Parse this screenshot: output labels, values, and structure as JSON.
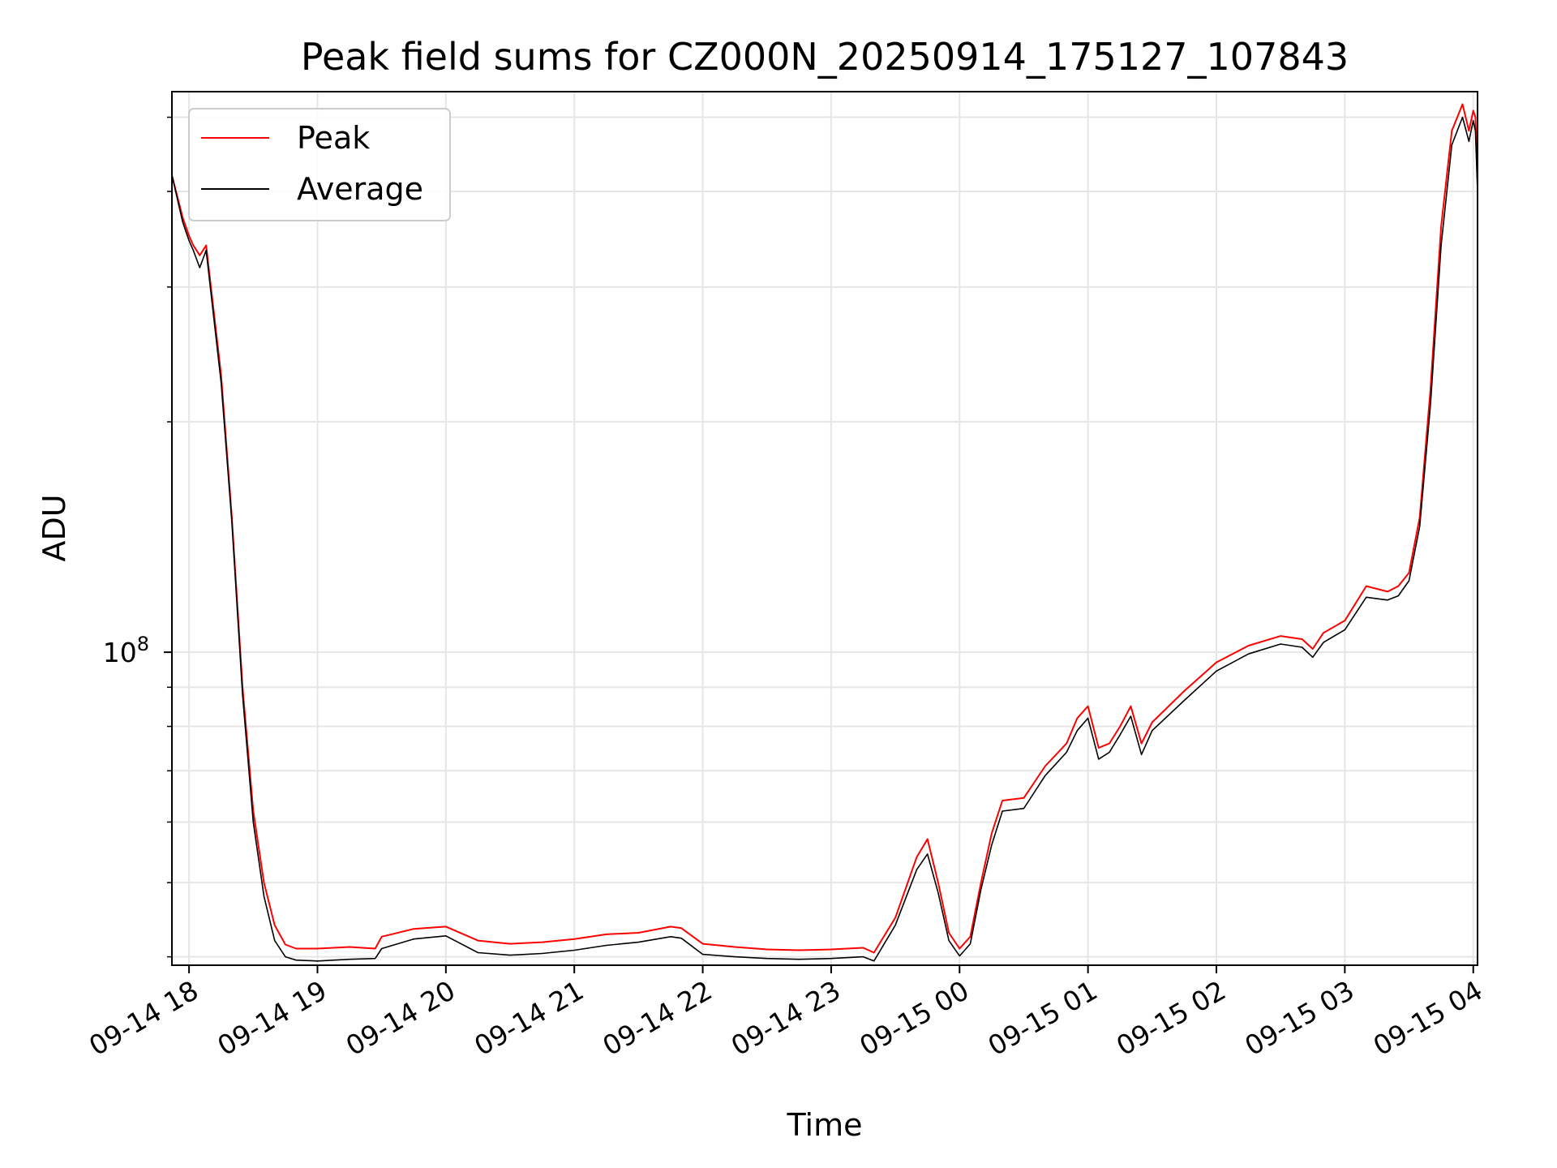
{
  "chart_data": {
    "type": "line",
    "title": "Peak field sums for CZ000N_20250914_175127_107843",
    "xlabel": "Time",
    "ylabel": "ADU",
    "y_scale": "log",
    "ylim": [
      39000000,
      540000000
    ],
    "xlim": [
      "2025-09-14 17:52",
      "2025-09-15 04:02"
    ],
    "x_ticks": [
      "09-14 18",
      "09-14 19",
      "09-14 20",
      "09-14 21",
      "09-14 22",
      "09-14 23",
      "09-15 00",
      "09-15 01",
      "09-15 02",
      "09-15 03",
      "09-15 04"
    ],
    "y_ticks": [
      {
        "value": 100000000,
        "base": "10",
        "exp": "8"
      }
    ],
    "grid": true,
    "legend_position": "top-left",
    "series": [
      {
        "name": "Peak",
        "color": "#ff0000",
        "x": [
          "2025-09-14 17:52",
          "2025-09-14 17:57",
          "2025-09-14 18:00",
          "2025-09-14 18:02",
          "2025-09-14 18:05",
          "2025-09-14 18:08",
          "2025-09-14 18:15",
          "2025-09-14 18:20",
          "2025-09-14 18:25",
          "2025-09-14 18:30",
          "2025-09-14 18:35",
          "2025-09-14 18:40",
          "2025-09-14 18:45",
          "2025-09-14 18:50",
          "2025-09-14 19:00",
          "2025-09-14 19:15",
          "2025-09-14 19:27",
          "2025-09-14 19:30",
          "2025-09-14 19:45",
          "2025-09-14 20:00",
          "2025-09-14 20:15",
          "2025-09-14 20:30",
          "2025-09-14 20:45",
          "2025-09-14 21:00",
          "2025-09-14 21:15",
          "2025-09-14 21:30",
          "2025-09-14 21:45",
          "2025-09-14 21:50",
          "2025-09-14 22:00",
          "2025-09-14 22:15",
          "2025-09-14 22:30",
          "2025-09-14 22:45",
          "2025-09-14 23:00",
          "2025-09-14 23:15",
          "2025-09-14 23:20",
          "2025-09-14 23:30",
          "2025-09-14 23:40",
          "2025-09-14 23:45",
          "2025-09-14 23:50",
          "2025-09-14 23:55",
          "2025-09-15 00:00",
          "2025-09-15 00:05",
          "2025-09-15 00:10",
          "2025-09-15 00:15",
          "2025-09-15 00:20",
          "2025-09-15 00:30",
          "2025-09-15 00:40",
          "2025-09-15 00:50",
          "2025-09-15 00:55",
          "2025-09-15 01:00",
          "2025-09-15 01:05",
          "2025-09-15 01:10",
          "2025-09-15 01:15",
          "2025-09-15 01:20",
          "2025-09-15 01:25",
          "2025-09-15 01:30",
          "2025-09-15 01:45",
          "2025-09-15 02:00",
          "2025-09-15 02:15",
          "2025-09-15 02:30",
          "2025-09-15 02:40",
          "2025-09-15 02:45",
          "2025-09-15 02:50",
          "2025-09-15 03:00",
          "2025-09-15 03:10",
          "2025-09-15 03:20",
          "2025-09-15 03:25",
          "2025-09-15 03:30",
          "2025-09-15 03:35",
          "2025-09-15 03:40",
          "2025-09-15 03:45",
          "2025-09-15 03:50",
          "2025-09-15 03:55",
          "2025-09-15 03:58",
          "2025-09-15 04:00",
          "2025-09-15 04:01",
          "2025-09-15 04:02"
        ],
        "y": [
          420000000,
          370000000,
          350000000,
          340000000,
          330000000,
          340000000,
          230000000,
          150000000,
          90000000,
          62000000,
          50000000,
          44000000,
          41500000,
          41000000,
          41000000,
          41200000,
          41000000,
          42500000,
          43500000,
          43800000,
          42000000,
          41600000,
          41800000,
          42200000,
          42800000,
          43000000,
          43800000,
          43600000,
          41600000,
          41200000,
          40900000,
          40800000,
          40900000,
          41100000,
          40500000,
          45000000,
          54000000,
          57000000,
          50000000,
          43000000,
          41000000,
          42500000,
          50000000,
          58000000,
          64000000,
          64500000,
          71000000,
          76000000,
          82000000,
          85000000,
          75000000,
          76000000,
          80000000,
          85000000,
          76000000,
          81000000,
          89000000,
          97000000,
          102000000,
          105000000,
          104000000,
          101000000,
          106000000,
          110000000,
          122000000,
          120000000,
          122000000,
          127000000,
          150000000,
          220000000,
          360000000,
          480000000,
          520000000,
          480000000,
          510000000,
          500000000,
          420000000
        ]
      },
      {
        "name": "Average",
        "color": "#000000",
        "x": [
          "2025-09-14 17:52",
          "2025-09-14 17:57",
          "2025-09-14 18:00",
          "2025-09-14 18:02",
          "2025-09-14 18:05",
          "2025-09-14 18:08",
          "2025-09-14 18:15",
          "2025-09-14 18:20",
          "2025-09-14 18:25",
          "2025-09-14 18:30",
          "2025-09-14 18:35",
          "2025-09-14 18:40",
          "2025-09-14 18:45",
          "2025-09-14 18:50",
          "2025-09-14 19:00",
          "2025-09-14 19:15",
          "2025-09-14 19:27",
          "2025-09-14 19:30",
          "2025-09-14 19:45",
          "2025-09-14 20:00",
          "2025-09-14 20:15",
          "2025-09-14 20:30",
          "2025-09-14 20:45",
          "2025-09-14 21:00",
          "2025-09-14 21:15",
          "2025-09-14 21:30",
          "2025-09-14 21:45",
          "2025-09-14 21:50",
          "2025-09-14 22:00",
          "2025-09-14 22:15",
          "2025-09-14 22:30",
          "2025-09-14 22:45",
          "2025-09-14 23:00",
          "2025-09-14 23:15",
          "2025-09-14 23:20",
          "2025-09-14 23:30",
          "2025-09-14 23:40",
          "2025-09-14 23:45",
          "2025-09-14 23:50",
          "2025-09-14 23:55",
          "2025-09-15 00:00",
          "2025-09-15 00:05",
          "2025-09-15 00:10",
          "2025-09-15 00:15",
          "2025-09-15 00:20",
          "2025-09-15 00:30",
          "2025-09-15 00:40",
          "2025-09-15 00:50",
          "2025-09-15 00:55",
          "2025-09-15 01:00",
          "2025-09-15 01:05",
          "2025-09-15 01:10",
          "2025-09-15 01:15",
          "2025-09-15 01:20",
          "2025-09-15 01:25",
          "2025-09-15 01:30",
          "2025-09-15 01:45",
          "2025-09-15 02:00",
          "2025-09-15 02:15",
          "2025-09-15 02:30",
          "2025-09-15 02:40",
          "2025-09-15 02:45",
          "2025-09-15 02:50",
          "2025-09-15 03:00",
          "2025-09-15 03:10",
          "2025-09-15 03:20",
          "2025-09-15 03:25",
          "2025-09-15 03:30",
          "2025-09-15 03:35",
          "2025-09-15 03:40",
          "2025-09-15 03:45",
          "2025-09-15 03:50",
          "2025-09-15 03:55",
          "2025-09-15 03:58",
          "2025-09-15 04:00",
          "2025-09-15 04:01",
          "2025-09-15 04:02"
        ],
        "y": [
          420000000,
          365000000,
          345000000,
          335000000,
          318000000,
          335000000,
          225000000,
          148000000,
          88000000,
          60000000,
          48000000,
          42000000,
          40000000,
          39600000,
          39500000,
          39700000,
          39800000,
          41000000,
          42200000,
          42600000,
          40500000,
          40200000,
          40400000,
          40800000,
          41400000,
          41800000,
          42500000,
          42300000,
          40300000,
          40000000,
          39800000,
          39700000,
          39800000,
          40000000,
          39500000,
          44000000,
          52000000,
          54500000,
          48500000,
          42000000,
          40100000,
          41600000,
          49000000,
          56000000,
          62000000,
          62500000,
          69000000,
          74000000,
          79000000,
          82000000,
          72500000,
          74000000,
          78000000,
          82500000,
          73500000,
          79000000,
          86500000,
          94500000,
          99500000,
          102500000,
          101500000,
          98500000,
          103000000,
          107000000,
          118000000,
          117000000,
          118500000,
          124000000,
          146000000,
          210000000,
          340000000,
          460000000,
          500000000,
          465000000,
          495000000,
          480000000,
          400000000
        ]
      }
    ]
  }
}
